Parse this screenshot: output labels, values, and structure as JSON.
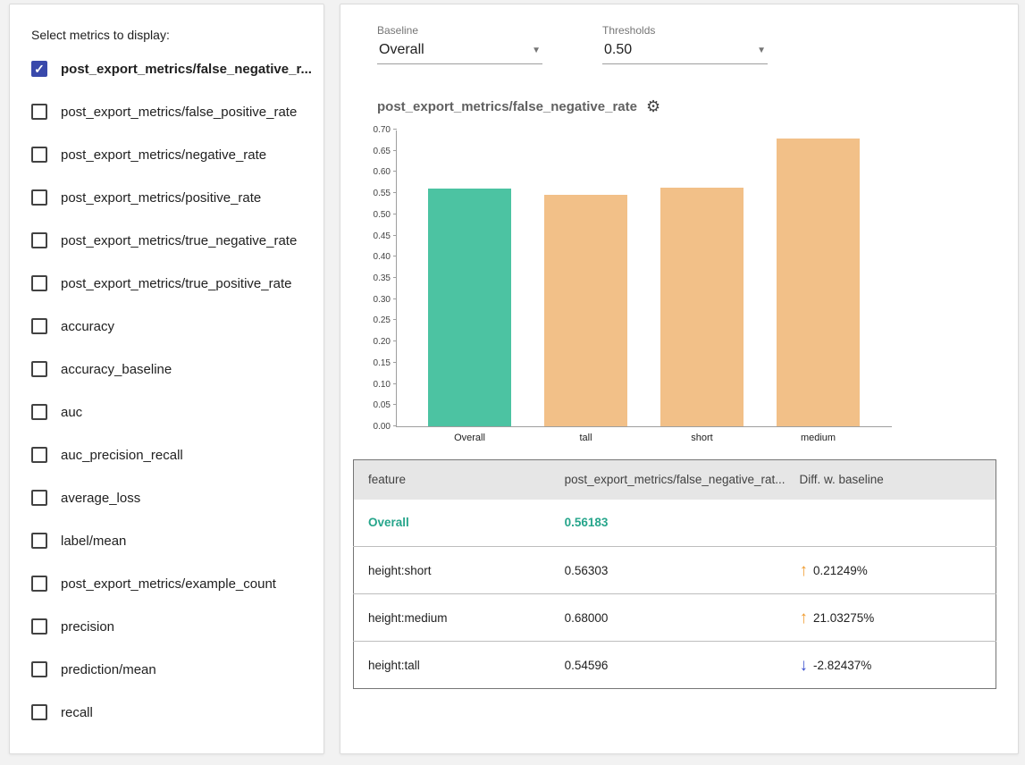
{
  "left_panel": {
    "title": "Select metrics to display:",
    "metrics": [
      {
        "label": "post_export_metrics/false_negative_r...",
        "checked": true
      },
      {
        "label": "post_export_metrics/false_positive_rate",
        "checked": false
      },
      {
        "label": "post_export_metrics/negative_rate",
        "checked": false
      },
      {
        "label": "post_export_metrics/positive_rate",
        "checked": false
      },
      {
        "label": "post_export_metrics/true_negative_rate",
        "checked": false
      },
      {
        "label": "post_export_metrics/true_positive_rate",
        "checked": false
      },
      {
        "label": "accuracy",
        "checked": false
      },
      {
        "label": "accuracy_baseline",
        "checked": false
      },
      {
        "label": "auc",
        "checked": false
      },
      {
        "label": "auc_precision_recall",
        "checked": false
      },
      {
        "label": "average_loss",
        "checked": false
      },
      {
        "label": "label/mean",
        "checked": false
      },
      {
        "label": "post_export_metrics/example_count",
        "checked": false
      },
      {
        "label": "precision",
        "checked": false
      },
      {
        "label": "prediction/mean",
        "checked": false
      },
      {
        "label": "recall",
        "checked": false
      }
    ]
  },
  "controls": {
    "baseline_label": "Baseline",
    "baseline_value": "Overall",
    "thresholds_label": "Thresholds",
    "thresholds_value": "0.50"
  },
  "chart": {
    "title": "post_export_metrics/false_negative_rate",
    "gear_icon": "⚙"
  },
  "chart_data": {
    "type": "bar",
    "categories": [
      "Overall",
      "tall",
      "short",
      "medium"
    ],
    "values": [
      0.56183,
      0.54596,
      0.56303,
      0.68
    ],
    "title": "post_export_metrics/false_negative_rate",
    "xlabel": "",
    "ylabel": "",
    "ylim": [
      0,
      0.7
    ],
    "ytick_step": 0.05,
    "grid": false,
    "legend": "none",
    "baseline_color": "#4cc3a2",
    "bar_color": "#f2c088"
  },
  "table": {
    "headers": [
      "feature",
      "post_export_metrics/false_negative_rat...",
      "Diff. w. baseline"
    ],
    "rows": [
      {
        "feature": "Overall",
        "value": "0.56183",
        "diff": "",
        "direction": "none",
        "is_baseline": true
      },
      {
        "feature": "height:short",
        "value": "0.56303",
        "diff": "0.21249%",
        "direction": "up",
        "is_baseline": false
      },
      {
        "feature": "height:medium",
        "value": "0.68000",
        "diff": "21.03275%",
        "direction": "up",
        "is_baseline": false
      },
      {
        "feature": "height:tall",
        "value": "0.54596",
        "diff": "-2.82437%",
        "direction": "down",
        "is_baseline": false
      }
    ]
  },
  "icons": {
    "check": "✓",
    "caret_down": "▼",
    "arrow_up": "↑",
    "arrow_down": "↓"
  }
}
